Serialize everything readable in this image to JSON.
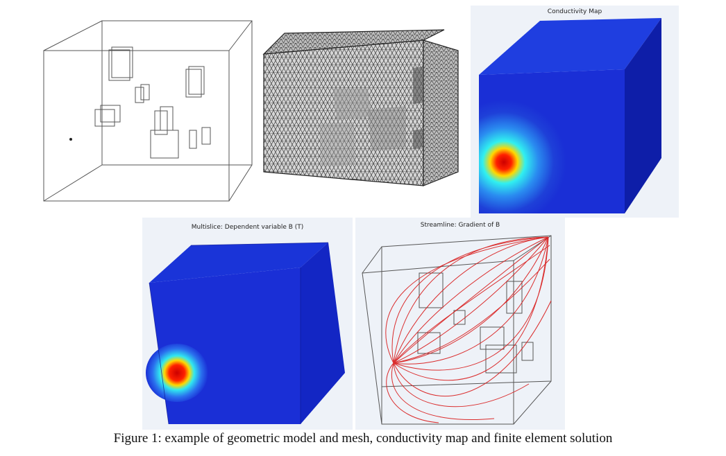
{
  "figure": {
    "caption": "Figure 1: example of geometric model and mesh, conductivity map and finite element solution",
    "panels": [
      {
        "title": ""
      },
      {
        "title": ""
      },
      {
        "title": "Conductivity Map",
        "background": "#eef2f8"
      },
      {
        "title": "Multislice: Dependent variable B (T)",
        "background": "#eef2f8"
      },
      {
        "title": "Streamline: Gradient of B",
        "background": "#eef2f8"
      }
    ]
  },
  "colors": {
    "field_blue": "#1a2fd6",
    "field_dark": "#0e1ea8",
    "hotspot_red": "#d40000",
    "streamline_red": "#d81818",
    "wire": "#444444"
  }
}
